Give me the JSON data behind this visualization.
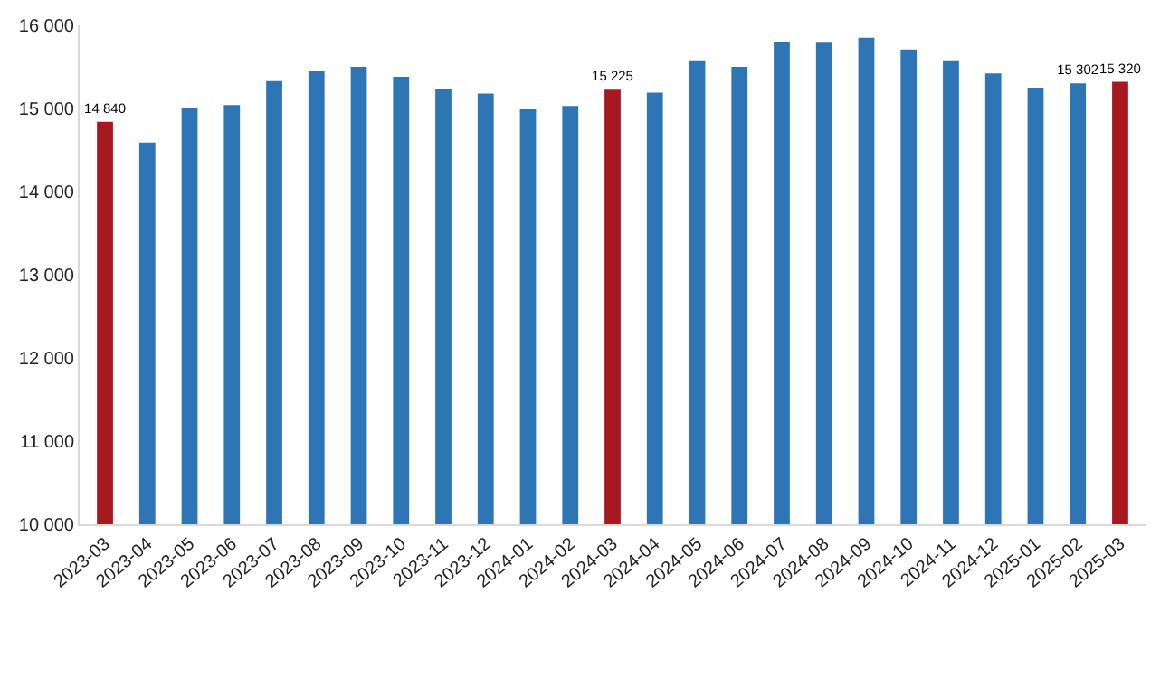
{
  "chart_data": {
    "type": "bar",
    "categories": [
      "2023-03",
      "2023-04",
      "2023-05",
      "2023-06",
      "2023-07",
      "2023-08",
      "2023-09",
      "2023-10",
      "2023-11",
      "2023-12",
      "2024-01",
      "2024-02",
      "2024-03",
      "2024-04",
      "2024-05",
      "2024-06",
      "2024-07",
      "2024-08",
      "2024-09",
      "2024-10",
      "2024-11",
      "2024-12",
      "2025-01",
      "2025-02",
      "2025-03"
    ],
    "values": [
      14840,
      14590,
      15000,
      15040,
      15330,
      15450,
      15500,
      15380,
      15230,
      15180,
      14990,
      15030,
      15225,
      15190,
      15580,
      15500,
      15800,
      15790,
      15850,
      15710,
      15580,
      15420,
      15250,
      15302,
      15320
    ],
    "value_labels": [
      "14 840",
      null,
      null,
      null,
      null,
      null,
      null,
      null,
      null,
      null,
      null,
      null,
      "15 225",
      null,
      null,
      null,
      null,
      null,
      null,
      null,
      null,
      null,
      null,
      "15 302",
      "15 320"
    ],
    "colors": [
      "#a8191f",
      "#2e75b6",
      "#2e75b6",
      "#2e75b6",
      "#2e75b6",
      "#2e75b6",
      "#2e75b6",
      "#2e75b6",
      "#2e75b6",
      "#2e75b6",
      "#2e75b6",
      "#2e75b6",
      "#a8191f",
      "#2e75b6",
      "#2e75b6",
      "#2e75b6",
      "#2e75b6",
      "#2e75b6",
      "#2e75b6",
      "#2e75b6",
      "#2e75b6",
      "#2e75b6",
      "#2e75b6",
      "#2e75b6",
      "#a8191f"
    ],
    "ylim": [
      10000,
      16000
    ],
    "yticks": [
      {
        "value": 10000,
        "label": "10 000"
      },
      {
        "value": 11000,
        "label": "11 000"
      },
      {
        "value": 12000,
        "label": "12 000"
      },
      {
        "value": 13000,
        "label": "13 000"
      },
      {
        "value": 14000,
        "label": "14 000"
      },
      {
        "value": 15000,
        "label": "15 000"
      },
      {
        "value": 16000,
        "label": "16 000"
      }
    ],
    "grid": false
  }
}
